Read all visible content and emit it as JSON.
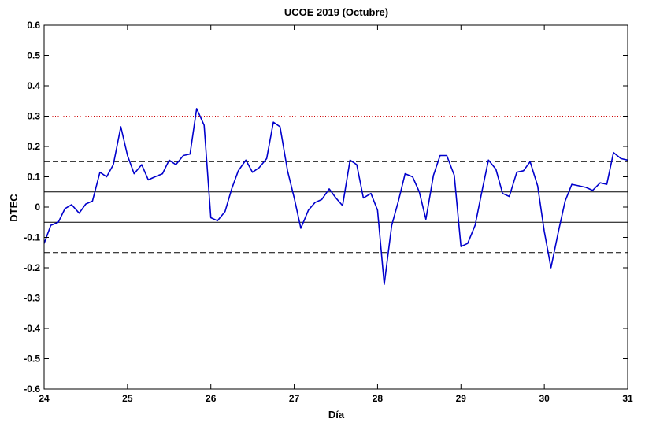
{
  "chart_data": {
    "type": "line",
    "title": "UCOE 2019 (Octubre)",
    "xlabel": "Día",
    "ylabel": "DTEC",
    "xlim": [
      24,
      31
    ],
    "ylim": [
      -0.6,
      0.6
    ],
    "x_ticks": [
      24,
      25,
      26,
      27,
      28,
      29,
      30,
      31
    ],
    "x_tick_labels": [
      "24",
      "25",
      "26",
      "27",
      "28",
      "29",
      "30",
      "31"
    ],
    "y_ticks": [
      -0.6,
      -0.5,
      -0.4,
      -0.3,
      -0.2,
      -0.1,
      0,
      0.1,
      0.2,
      0.3,
      0.4,
      0.5,
      0.6
    ],
    "y_tick_labels": [
      "-0.6",
      "-0.5",
      "-0.4",
      "-0.3",
      "-0.2",
      "-0.1",
      "0",
      "0.1",
      "0.2",
      "0.3",
      "0.4",
      "0.5",
      "0.6"
    ],
    "grid": false,
    "reference_lines": [
      {
        "y": 0.3,
        "style": "dotted",
        "color": "#cc0000"
      },
      {
        "y": -0.3,
        "style": "dotted",
        "color": "#cc0000"
      },
      {
        "y": 0.15,
        "style": "dashed",
        "color": "#000000"
      },
      {
        "y": -0.15,
        "style": "dashed",
        "color": "#000000"
      },
      {
        "y": 0.05,
        "style": "solid",
        "color": "#000000"
      },
      {
        "y": -0.05,
        "style": "solid",
        "color": "#000000"
      }
    ],
    "series": [
      {
        "color": "#0000cc",
        "x": [
          24.0,
          24.08,
          24.17,
          24.25,
          24.33,
          24.42,
          24.5,
          24.58,
          24.67,
          24.75,
          24.83,
          24.92,
          25.0,
          25.08,
          25.17,
          25.25,
          25.33,
          25.42,
          25.5,
          25.58,
          25.67,
          25.75,
          25.83,
          25.92,
          26.0,
          26.08,
          26.17,
          26.25,
          26.33,
          26.42,
          26.5,
          26.58,
          26.67,
          26.75,
          26.83,
          26.92,
          27.0,
          27.08,
          27.17,
          27.25,
          27.33,
          27.42,
          27.5,
          27.58,
          27.67,
          27.75,
          27.83,
          27.92,
          28.0,
          28.08,
          28.17,
          28.25,
          28.33,
          28.42,
          28.5,
          28.58,
          28.67,
          28.75,
          28.83,
          28.92,
          29.0,
          29.08,
          29.17,
          29.25,
          29.33,
          29.42,
          29.5,
          29.58,
          29.67,
          29.75,
          29.83,
          29.92,
          30.0,
          30.08,
          30.17,
          30.25,
          30.33,
          30.42,
          30.5,
          30.58,
          30.67,
          30.75,
          30.83,
          30.92,
          31.0
        ],
        "values": [
          -0.12,
          -0.06,
          -0.05,
          -0.005,
          0.008,
          -0.02,
          0.01,
          0.02,
          0.115,
          0.1,
          0.14,
          0.265,
          0.17,
          0.11,
          0.14,
          0.09,
          0.1,
          0.11,
          0.155,
          0.14,
          0.17,
          0.175,
          0.325,
          0.27,
          -0.035,
          -0.045,
          -0.015,
          0.06,
          0.12,
          0.155,
          0.115,
          0.13,
          0.16,
          0.28,
          0.265,
          0.12,
          0.03,
          -0.07,
          -0.01,
          0.015,
          0.025,
          0.06,
          0.03,
          0.005,
          0.155,
          0.14,
          0.03,
          0.045,
          -0.01,
          -0.255,
          -0.06,
          0.02,
          0.11,
          0.1,
          0.05,
          -0.04,
          0.105,
          0.17,
          0.17,
          0.105,
          -0.13,
          -0.12,
          -0.06,
          0.05,
          0.155,
          0.125,
          0.045,
          0.035,
          0.115,
          0.12,
          0.15,
          0.07,
          -0.08,
          -0.2,
          -0.08,
          0.02,
          0.075,
          0.07,
          0.065,
          0.055,
          0.08,
          0.075,
          0.18,
          0.16,
          0.155
        ]
      }
    ]
  }
}
